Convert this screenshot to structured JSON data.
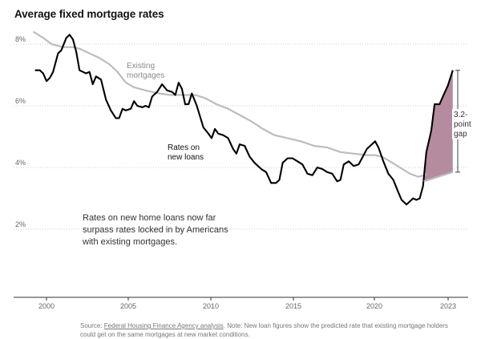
{
  "chart_data": {
    "type": "line",
    "title": "Average fixed mortgage rates",
    "xlabel": "",
    "ylabel": "",
    "xlim": [
      1998.8,
      2023.2
    ],
    "ylim": [
      0,
      9
    ],
    "x_ticks": [
      {
        "value": 2000,
        "label": "2000"
      },
      {
        "value": 2005,
        "label": "2005"
      },
      {
        "value": 2010,
        "label": "2010"
      },
      {
        "value": 2015,
        "label": "2015"
      },
      {
        "value": 2020,
        "label": "2020"
      },
      {
        "value": 2023,
        "label": "2023"
      }
    ],
    "y_ticks": [
      {
        "value": 2,
        "label": "2%"
      },
      {
        "value": 4,
        "label": "4%"
      },
      {
        "value": 6,
        "label": "6%"
      },
      {
        "value": 8,
        "label": "8%"
      }
    ],
    "grid": "horizontal dotted",
    "series": [
      {
        "name": "Existing mortgages",
        "color": "#bdbdbd",
        "points": [
          [
            1999.2,
            8.4
          ],
          [
            1999.8,
            8.2
          ],
          [
            2000.3,
            8.0
          ],
          [
            2001.0,
            7.9
          ],
          [
            2001.6,
            7.9
          ],
          [
            2002.0,
            7.85
          ],
          [
            2002.6,
            7.7
          ],
          [
            2003.2,
            7.55
          ],
          [
            2003.8,
            7.35
          ],
          [
            2004.3,
            7.1
          ],
          [
            2004.8,
            6.75
          ],
          [
            2005.3,
            6.6
          ],
          [
            2006.0,
            6.5
          ],
          [
            2006.8,
            6.4
          ],
          [
            2007.5,
            6.35
          ],
          [
            2008.3,
            6.35
          ],
          [
            2009.0,
            6.35
          ],
          [
            2009.6,
            6.25
          ],
          [
            2010.3,
            6.05
          ],
          [
            2011.0,
            5.9
          ],
          [
            2011.7,
            5.7
          ],
          [
            2012.4,
            5.5
          ],
          [
            2013.1,
            5.25
          ],
          [
            2013.8,
            5.05
          ],
          [
            2014.6,
            4.95
          ],
          [
            2015.4,
            4.85
          ],
          [
            2016.2,
            4.7
          ],
          [
            2017.0,
            4.65
          ],
          [
            2017.8,
            4.5
          ],
          [
            2018.6,
            4.45
          ],
          [
            2019.4,
            4.4
          ],
          [
            2019.9,
            4.4
          ],
          [
            2020.3,
            4.35
          ],
          [
            2020.8,
            4.2
          ],
          [
            2021.4,
            4.0
          ],
          [
            2022.0,
            3.8
          ],
          [
            2022.5,
            3.7
          ],
          [
            2022.9,
            3.75
          ],
          [
            2023.0,
            3.8
          ]
        ]
      },
      {
        "name": "Rates on new loans",
        "color": "#000000",
        "points": [
          [
            1999.3,
            7.15
          ],
          [
            1999.6,
            7.15
          ],
          [
            1999.8,
            7.05
          ],
          [
            2000.0,
            6.8
          ],
          [
            2000.2,
            6.9
          ],
          [
            2000.4,
            7.1
          ],
          [
            2000.7,
            7.7
          ],
          [
            2000.9,
            7.8
          ],
          [
            2001.2,
            8.2
          ],
          [
            2001.4,
            8.3
          ],
          [
            2001.6,
            8.15
          ],
          [
            2001.8,
            7.75
          ],
          [
            2002.0,
            7.15
          ],
          [
            2002.4,
            7.05
          ],
          [
            2002.6,
            7.1
          ],
          [
            2002.8,
            6.7
          ],
          [
            2003.0,
            6.95
          ],
          [
            2003.3,
            6.85
          ],
          [
            2003.6,
            6.2
          ],
          [
            2003.9,
            5.85
          ],
          [
            2004.2,
            5.6
          ],
          [
            2004.4,
            5.6
          ],
          [
            2004.6,
            5.9
          ],
          [
            2004.8,
            5.85
          ],
          [
            2005.1,
            5.9
          ],
          [
            2005.3,
            6.15
          ],
          [
            2005.5,
            6.0
          ],
          [
            2005.8,
            5.95
          ],
          [
            2006.0,
            6.0
          ],
          [
            2006.2,
            5.95
          ],
          [
            2006.4,
            6.3
          ],
          [
            2006.7,
            6.45
          ],
          [
            2007.0,
            6.7
          ],
          [
            2007.3,
            6.5
          ],
          [
            2007.6,
            6.45
          ],
          [
            2007.8,
            6.35
          ],
          [
            2008.0,
            6.75
          ],
          [
            2008.2,
            6.55
          ],
          [
            2008.4,
            6.05
          ],
          [
            2008.6,
            6.05
          ],
          [
            2008.8,
            6.4
          ],
          [
            2009.1,
            6.0
          ],
          [
            2009.5,
            5.3
          ],
          [
            2009.8,
            5.1
          ],
          [
            2010.0,
            4.95
          ],
          [
            2010.2,
            5.25
          ],
          [
            2010.4,
            5.1
          ],
          [
            2010.7,
            5.05
          ],
          [
            2011.0,
            4.95
          ],
          [
            2011.3,
            4.6
          ],
          [
            2011.5,
            4.45
          ],
          [
            2011.7,
            4.75
          ],
          [
            2012.0,
            4.7
          ],
          [
            2012.3,
            4.35
          ],
          [
            2012.6,
            4.15
          ],
          [
            2013.0,
            3.95
          ],
          [
            2013.3,
            3.85
          ],
          [
            2013.6,
            3.5
          ],
          [
            2013.9,
            3.5
          ],
          [
            2014.1,
            3.6
          ],
          [
            2014.3,
            4.15
          ],
          [
            2014.6,
            4.3
          ],
          [
            2014.9,
            4.3
          ],
          [
            2015.2,
            4.2
          ],
          [
            2015.5,
            4.1
          ],
          [
            2015.8,
            3.8
          ],
          [
            2016.1,
            3.75
          ],
          [
            2016.4,
            4.0
          ],
          [
            2016.7,
            3.95
          ],
          [
            2017.0,
            3.85
          ],
          [
            2017.3,
            3.8
          ],
          [
            2017.6,
            3.55
          ],
          [
            2017.8,
            3.6
          ],
          [
            2018.0,
            4.1
          ],
          [
            2018.3,
            4.2
          ],
          [
            2018.6,
            4.05
          ],
          [
            2018.9,
            4.1
          ],
          [
            2019.1,
            4.3
          ],
          [
            2019.4,
            4.6
          ],
          [
            2019.7,
            4.75
          ],
          [
            2019.9,
            4.85
          ],
          [
            2020.1,
            4.65
          ],
          [
            2020.4,
            4.2
          ],
          [
            2020.7,
            3.8
          ],
          [
            2021.0,
            3.6
          ],
          [
            2021.3,
            3.2
          ],
          [
            2021.5,
            2.95
          ],
          [
            2021.8,
            2.8
          ],
          [
            2022.0,
            2.9
          ],
          [
            2022.2,
            3.0
          ],
          [
            2022.4,
            2.95
          ],
          [
            2022.6,
            3.0
          ],
          [
            2022.8,
            3.4
          ],
          [
            2023.0,
            4.5
          ],
          [
            2023.3,
            5.2
          ],
          [
            2023.5,
            6.05
          ],
          [
            2023.8,
            6.05
          ],
          [
            2024.0,
            6.3
          ],
          [
            2024.3,
            6.65
          ],
          [
            2024.6,
            7.15
          ]
        ]
      }
    ],
    "annotations": [
      {
        "id": "existing",
        "lines": [
          "Existing",
          "mortgages"
        ]
      },
      {
        "id": "new",
        "lines": [
          "Rates on",
          "new loans"
        ]
      },
      {
        "id": "gap",
        "lines": [
          "3.2-",
          "point",
          "gap"
        ],
        "fill": "#b48b9f"
      }
    ]
  },
  "note": "Rates on new home loans now far surpass rates locked in by Americans with existing mortgages.",
  "source": {
    "prefix": "Source: ",
    "link": "Federal Housing Finance Agency analysis",
    "suffix": ". Note: New loan figures show the predicted rate that existing mortgage holders could get on the same mortgages at new market conditions."
  }
}
